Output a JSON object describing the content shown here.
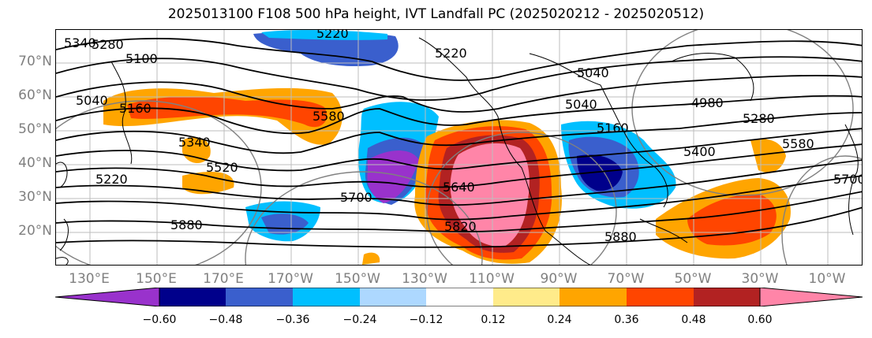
{
  "title": "2025013100 F108 500 hPa height, IVT Landfall PC (2025020212 - 2025020512)",
  "lat_labels": [
    "70°N",
    "60°N",
    "50°N",
    "40°N",
    "30°N",
    "20°N"
  ],
  "lon_labels": [
    "130°E",
    "150°E",
    "170°E",
    "170°W",
    "150°W",
    "130°W",
    "110°W",
    "90°W",
    "70°W",
    "50°W",
    "30°W",
    "10°W"
  ],
  "contour_labels": [
    "5340",
    "5280",
    "5100",
    "5040",
    "5160",
    "5220",
    "5580",
    "5340",
    "5520",
    "5220",
    "5700",
    "5880",
    "5220",
    "5040",
    "5160",
    "5640",
    "5820",
    "5040",
    "4980",
    "5280",
    "5400",
    "5580",
    "5700",
    "5880"
  ],
  "colorbar": {
    "ticks": [
      "−0.60",
      "−0.48",
      "−0.36",
      "−0.24",
      "−0.12",
      "0.12",
      "0.24",
      "0.36",
      "0.48",
      "0.60"
    ],
    "colors": [
      "#9932CC",
      "#00008B",
      "#3A5FCD",
      "#00BFFF",
      "#ADD8FF",
      "#FFFFFF",
      "#FFEB8A",
      "#FFA500",
      "#FF4500",
      "#B22222",
      "#FF85A8"
    ]
  }
}
